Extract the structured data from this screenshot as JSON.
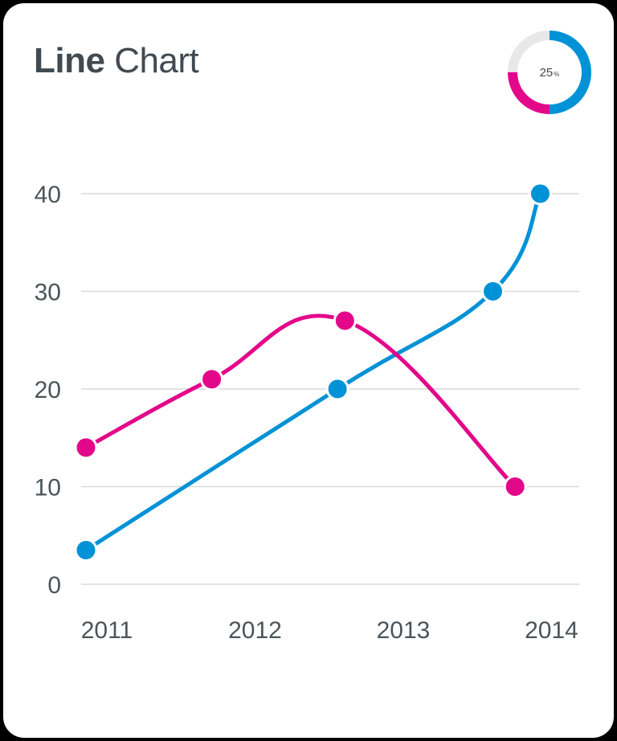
{
  "title": {
    "bold": "Line",
    "rest": "Chart"
  },
  "badge": {
    "value": "25",
    "unit": "%",
    "fraction": 0.25,
    "colors": [
      "#0092d6",
      "#e3078a",
      "#e8e8e8"
    ]
  },
  "chart_data": {
    "type": "line",
    "title": "Line Chart",
    "xlabel": "",
    "ylabel": "",
    "categories": [
      "2011",
      "2012",
      "2013",
      "2014"
    ],
    "yticks": [
      "0",
      "10",
      "20",
      "30",
      "40"
    ],
    "ylim": [
      0,
      40
    ],
    "grid": true,
    "series": [
      {
        "color": "#0092d6",
        "x": [
          2011.0,
          2012.7,
          2013.75,
          2014.07
        ],
        "y": [
          3.5,
          20,
          30,
          40
        ]
      },
      {
        "color": "#e3078a",
        "x": [
          2011.0,
          2011.85,
          2012.75,
          2013.9
        ],
        "y": [
          14,
          21,
          27,
          10
        ]
      }
    ]
  }
}
